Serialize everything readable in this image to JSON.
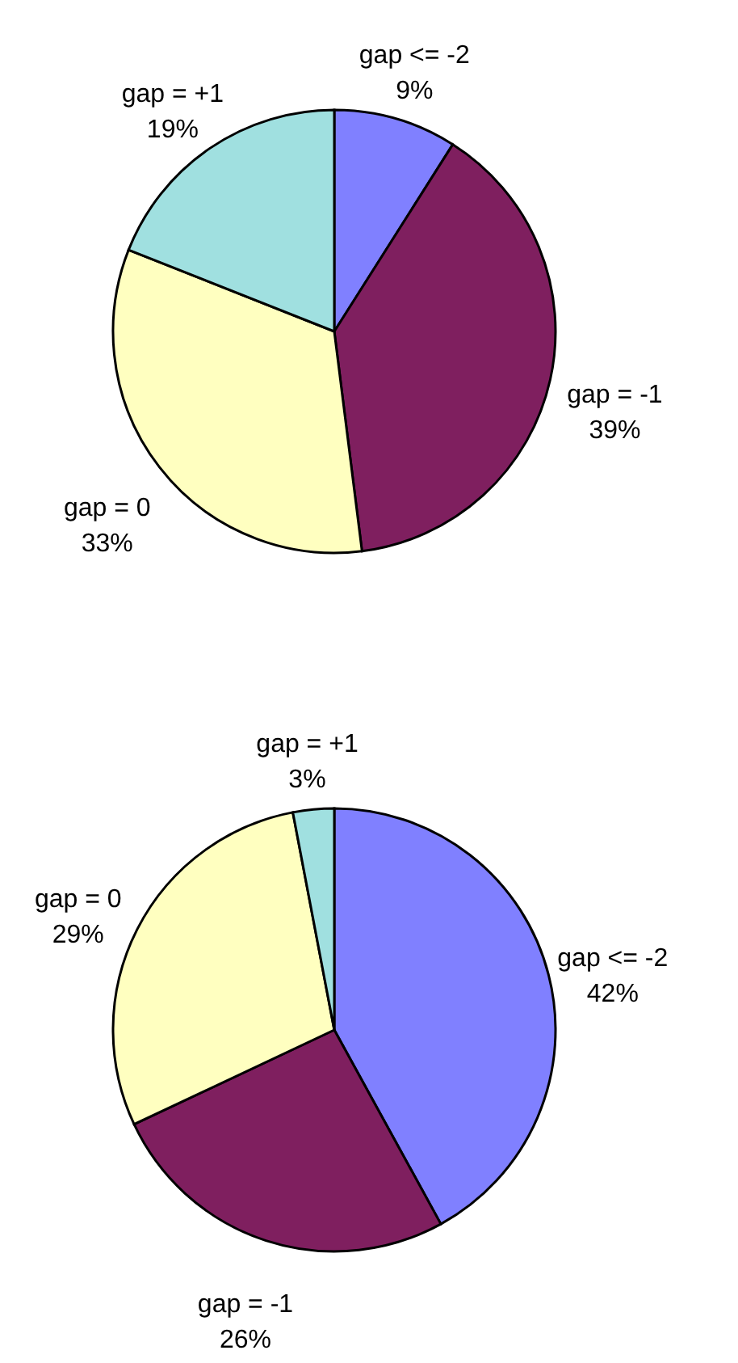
{
  "chart_data": [
    {
      "type": "pie",
      "categories": [
        "gap <= -2",
        "gap = -1",
        "gap = 0",
        "gap = +1"
      ],
      "values": [
        9,
        39,
        33,
        19
      ],
      "value_labels": [
        "9%",
        "39%",
        "33%",
        "19%"
      ],
      "colors": [
        "#8080ff",
        "#7f1f5f",
        "#ffffc0",
        "#a0e0e0"
      ]
    },
    {
      "type": "pie",
      "categories": [
        "gap <= -2",
        "gap = -1",
        "gap = 0",
        "gap = +1"
      ],
      "values": [
        42,
        26,
        29,
        3
      ],
      "value_labels": [
        "42%",
        "26%",
        "29%",
        "3%"
      ],
      "colors": [
        "#8080ff",
        "#7f1f5f",
        "#ffffc0",
        "#a0e0e0"
      ]
    }
  ]
}
